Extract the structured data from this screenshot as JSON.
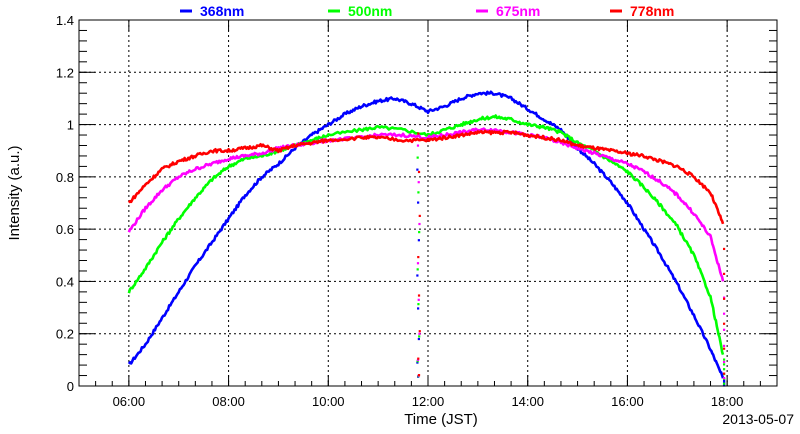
{
  "chart_data": {
    "type": "line",
    "xlabel": "Time (JST)",
    "ylabel": "Intensity (a.u.)",
    "date": "2013-05-07",
    "xlim": [
      "05:00",
      "19:00"
    ],
    "ylim": [
      0,
      1.4
    ],
    "x_ticks": [
      "06:00",
      "08:00",
      "10:00",
      "12:00",
      "14:00",
      "16:00",
      "18:00"
    ],
    "y_ticks": [
      "0",
      "0.2",
      "0.4",
      "0.6",
      "0.8",
      "1",
      "1.2",
      "1.4"
    ],
    "grid": true,
    "legend_position": "top",
    "dropout_time": "11:48",
    "series": [
      {
        "name": "368nm",
        "color": "#0000ff",
        "points": [
          [
            "06:00",
            0.08
          ],
          [
            "06:20",
            0.16
          ],
          [
            "06:40",
            0.26
          ],
          [
            "07:00",
            0.36
          ],
          [
            "07:20",
            0.46
          ],
          [
            "07:40",
            0.55
          ],
          [
            "08:00",
            0.64
          ],
          [
            "08:20",
            0.73
          ],
          [
            "08:40",
            0.8
          ],
          [
            "09:00",
            0.85
          ],
          [
            "09:20",
            0.91
          ],
          [
            "09:40",
            0.96
          ],
          [
            "10:00",
            1.0
          ],
          [
            "10:20",
            1.04
          ],
          [
            "10:40",
            1.07
          ],
          [
            "11:00",
            1.09
          ],
          [
            "11:20",
            1.1
          ],
          [
            "11:40",
            1.08
          ],
          [
            "12:00",
            1.05
          ],
          [
            "12:20",
            1.07
          ],
          [
            "12:40",
            1.1
          ],
          [
            "13:00",
            1.12
          ],
          [
            "13:20",
            1.12
          ],
          [
            "13:40",
            1.1
          ],
          [
            "14:00",
            1.06
          ],
          [
            "14:20",
            1.02
          ],
          [
            "14:40",
            0.98
          ],
          [
            "15:00",
            0.91
          ],
          [
            "15:20",
            0.85
          ],
          [
            "15:40",
            0.78
          ],
          [
            "16:00",
            0.7
          ],
          [
            "16:20",
            0.6
          ],
          [
            "16:40",
            0.5
          ],
          [
            "17:00",
            0.39
          ],
          [
            "17:20",
            0.27
          ],
          [
            "17:40",
            0.14
          ],
          [
            "17:55",
            0.03
          ]
        ]
      },
      {
        "name": "500nm",
        "color": "#00ff00",
        "points": [
          [
            "06:00",
            0.36
          ],
          [
            "06:20",
            0.45
          ],
          [
            "06:40",
            0.55
          ],
          [
            "07:00",
            0.64
          ],
          [
            "07:20",
            0.72
          ],
          [
            "07:40",
            0.79
          ],
          [
            "08:00",
            0.84
          ],
          [
            "08:20",
            0.87
          ],
          [
            "08:40",
            0.88
          ],
          [
            "09:00",
            0.9
          ],
          [
            "09:20",
            0.92
          ],
          [
            "09:40",
            0.94
          ],
          [
            "10:00",
            0.96
          ],
          [
            "10:40",
            0.98
          ],
          [
            "11:00",
            0.99
          ],
          [
            "11:30",
            0.98
          ],
          [
            "12:00",
            0.96
          ],
          [
            "12:20",
            0.98
          ],
          [
            "12:40",
            1.0
          ],
          [
            "13:00",
            1.02
          ],
          [
            "13:20",
            1.03
          ],
          [
            "13:40",
            1.02
          ],
          [
            "14:00",
            1.0
          ],
          [
            "14:20",
            0.99
          ],
          [
            "14:40",
            0.97
          ],
          [
            "15:00",
            0.93
          ],
          [
            "15:20",
            0.9
          ],
          [
            "15:40",
            0.86
          ],
          [
            "16:00",
            0.82
          ],
          [
            "16:20",
            0.76
          ],
          [
            "16:40",
            0.69
          ],
          [
            "17:00",
            0.61
          ],
          [
            "17:20",
            0.5
          ],
          [
            "17:40",
            0.34
          ],
          [
            "17:55",
            0.12
          ]
        ]
      },
      {
        "name": "675nm",
        "color": "#ff00ff",
        "points": [
          [
            "06:00",
            0.59
          ],
          [
            "06:20",
            0.68
          ],
          [
            "06:40",
            0.75
          ],
          [
            "07:00",
            0.8
          ],
          [
            "07:20",
            0.83
          ],
          [
            "07:40",
            0.85
          ],
          [
            "08:00",
            0.87
          ],
          [
            "08:20",
            0.88
          ],
          [
            "08:40",
            0.89
          ],
          [
            "09:00",
            0.91
          ],
          [
            "09:20",
            0.92
          ],
          [
            "09:40",
            0.93
          ],
          [
            "10:00",
            0.94
          ],
          [
            "10:40",
            0.95
          ],
          [
            "11:00",
            0.96
          ],
          [
            "11:30",
            0.96
          ],
          [
            "12:00",
            0.95
          ],
          [
            "12:20",
            0.96
          ],
          [
            "12:40",
            0.97
          ],
          [
            "13:00",
            0.98
          ],
          [
            "13:20",
            0.98
          ],
          [
            "13:40",
            0.97
          ],
          [
            "14:00",
            0.96
          ],
          [
            "14:20",
            0.95
          ],
          [
            "14:40",
            0.93
          ],
          [
            "15:00",
            0.91
          ],
          [
            "15:20",
            0.89
          ],
          [
            "15:40",
            0.87
          ],
          [
            "16:00",
            0.85
          ],
          [
            "16:20",
            0.82
          ],
          [
            "16:40",
            0.78
          ],
          [
            "17:00",
            0.73
          ],
          [
            "17:20",
            0.66
          ],
          [
            "17:40",
            0.57
          ],
          [
            "17:55",
            0.4
          ]
        ]
      },
      {
        "name": "778nm",
        "color": "#ff0000",
        "points": [
          [
            "06:00",
            0.7
          ],
          [
            "06:20",
            0.77
          ],
          [
            "06:40",
            0.83
          ],
          [
            "07:00",
            0.86
          ],
          [
            "07:20",
            0.88
          ],
          [
            "07:40",
            0.9
          ],
          [
            "08:00",
            0.9
          ],
          [
            "08:20",
            0.91
          ],
          [
            "08:40",
            0.92
          ],
          [
            "09:00",
            0.9
          ],
          [
            "09:20",
            0.92
          ],
          [
            "09:40",
            0.93
          ],
          [
            "10:00",
            0.94
          ],
          [
            "10:40",
            0.95
          ],
          [
            "11:00",
            0.95
          ],
          [
            "11:30",
            0.94
          ],
          [
            "12:00",
            0.94
          ],
          [
            "12:20",
            0.95
          ],
          [
            "12:40",
            0.96
          ],
          [
            "13:00",
            0.97
          ],
          [
            "13:20",
            0.97
          ],
          [
            "13:40",
            0.97
          ],
          [
            "14:00",
            0.96
          ],
          [
            "14:20",
            0.95
          ],
          [
            "14:40",
            0.94
          ],
          [
            "15:00",
            0.92
          ],
          [
            "15:20",
            0.91
          ],
          [
            "15:40",
            0.9
          ],
          [
            "16:00",
            0.89
          ],
          [
            "16:20",
            0.88
          ],
          [
            "16:40",
            0.86
          ],
          [
            "17:00",
            0.84
          ],
          [
            "17:20",
            0.8
          ],
          [
            "17:40",
            0.74
          ],
          [
            "17:55",
            0.62
          ]
        ]
      }
    ]
  }
}
